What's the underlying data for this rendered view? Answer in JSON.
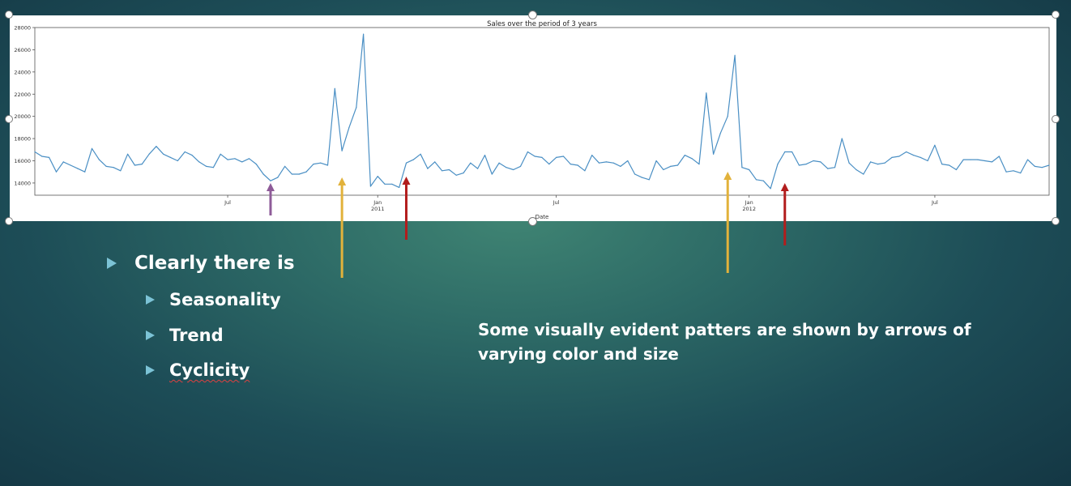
{
  "slide": {
    "bullets": {
      "main": "Clearly there is",
      "sub": [
        "Seasonality",
        "Trend",
        "Cyclicity"
      ]
    },
    "note": "Some visually evident patters are shown by arrows of varying color and size"
  },
  "chart_data": {
    "type": "line",
    "title": "Sales over the period of 3 years",
    "xlabel": "Date",
    "ylabel": "",
    "ylim": [
      12900,
      28000
    ],
    "yticks": [
      14000,
      16000,
      18000,
      20000,
      22000,
      24000,
      26000,
      28000
    ],
    "xticks": [
      {
        "label": "Jul",
        "index": 27
      },
      {
        "label": "Jan\n2011",
        "index": 48
      },
      {
        "label": "Jul",
        "index": 73
      },
      {
        "label": "Jan\n2012",
        "index": 100
      },
      {
        "label": "Jul",
        "index": 126
      }
    ],
    "color": "#4a8fc4",
    "series": [
      {
        "values": [
          16800,
          16400,
          16300,
          15000,
          15900,
          15600,
          15300,
          15000,
          17100,
          16100,
          15500,
          15400,
          15100,
          16600,
          15600,
          15700,
          16600,
          17300,
          16600,
          16300,
          16000,
          16800,
          16500,
          15900,
          15500,
          15400,
          16600,
          16100,
          16200,
          15900,
          16200,
          15700,
          14800,
          14200,
          14500,
          15500,
          14800,
          14800,
          15000,
          15700,
          15800,
          15600,
          22500,
          16900,
          19000,
          20800,
          27400,
          13700,
          14600,
          13900,
          13900,
          13600,
          15800,
          16100,
          16600,
          15300,
          15900,
          15100,
          15200,
          14700,
          14900,
          15800,
          15300,
          16500,
          14800,
          15800,
          15400,
          15200,
          15500,
          16800,
          16400,
          16300,
          15700,
          16300,
          16400,
          15700,
          15600,
          15100,
          16500,
          15800,
          15900,
          15800,
          15500,
          16000,
          14800,
          14500,
          14300,
          16000,
          15200,
          15500,
          15600,
          16500,
          16200,
          15700,
          22100,
          16600,
          18500,
          20000,
          25500,
          15400,
          15200,
          14300,
          14200,
          13500,
          15700,
          16800,
          16800,
          15600,
          15700,
          16000,
          15900,
          15300,
          15400,
          18000,
          15800,
          15200,
          14800,
          15900,
          15700,
          15800,
          16300,
          16400,
          16800,
          16500,
          16300,
          16000,
          17400,
          15700,
          15600,
          15200,
          16100,
          16100,
          16100,
          16000,
          15900,
          16400,
          15000,
          15100,
          14900,
          16100,
          15500,
          15400,
          15600
        ]
      }
    ],
    "annotations": {
      "arrows": [
        {
          "color": "#8e5b98",
          "index": 33,
          "note": "purple"
        },
        {
          "color": "#e2b23b",
          "index": 43,
          "note": "yellow"
        },
        {
          "color": "#b21d1d",
          "index": 52,
          "note": "red"
        },
        {
          "color": "#e2b23b",
          "index": 97,
          "note": "yellow"
        },
        {
          "color": "#b21d1d",
          "index": 105,
          "note": "red"
        },
        {
          "color": "#8e5b98",
          "index": 150,
          "note": "purple"
        }
      ]
    }
  }
}
